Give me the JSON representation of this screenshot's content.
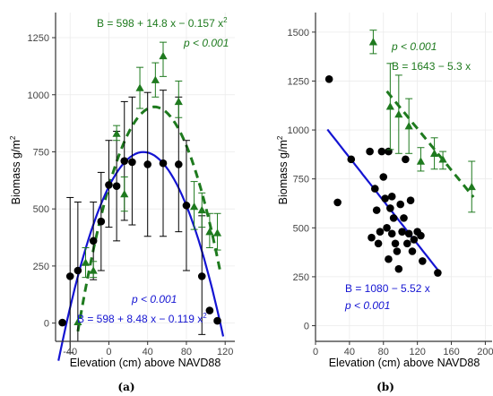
{
  "colors": {
    "green": "#1e7a1e",
    "blue": "#1414d2",
    "black": "#000000",
    "grid": "#ebebeb",
    "axis": "#333333"
  },
  "chart_data": [
    {
      "panel_label": "(a)",
      "type": "scatter",
      "xlabel": "Elevation (cm) above NAVD88",
      "ylabel_main": "Biomass g/m",
      "ylabel_sup": "2",
      "xlim": [
        -55,
        130
      ],
      "ylim": [
        -80,
        1360
      ],
      "xticks": [
        -40,
        0,
        40,
        80,
        120
      ],
      "yticks": [
        0,
        250,
        500,
        750,
        1000,
        1250
      ],
      "grid": true,
      "series": [
        {
          "color_key": "black",
          "marker": "circle",
          "points": [
            {
              "x": -48,
              "y": 2,
              "lo": 2,
              "hi": 2
            },
            {
              "x": -40,
              "y": 205,
              "lo": -130,
              "hi": 550
            },
            {
              "x": -32,
              "y": 230,
              "lo": -80,
              "hi": 530
            },
            {
              "x": -16,
              "y": 360,
              "lo": 190,
              "hi": 530
            },
            {
              "x": -8,
              "y": 445,
              "lo": 230,
              "hi": 660
            },
            {
              "x": 0,
              "y": 605,
              "lo": 420,
              "hi": 800
            },
            {
              "x": 8,
              "y": 600,
              "lo": 360,
              "hi": 840
            },
            {
              "x": 16,
              "y": 710,
              "lo": 450,
              "hi": 970
            },
            {
              "x": 24,
              "y": 705,
              "lo": 430,
              "hi": 990
            },
            {
              "x": 40,
              "y": 695,
              "lo": 380,
              "hi": 1010
            },
            {
              "x": 56,
              "y": 700,
              "lo": 380,
              "hi": 1020
            },
            {
              "x": 72,
              "y": 695,
              "lo": 400,
              "hi": 990
            },
            {
              "x": 80,
              "y": 515,
              "lo": 230,
              "hi": 800
            },
            {
              "x": 96,
              "y": 205,
              "lo": -50,
              "hi": 470
            },
            {
              "x": 104,
              "y": 55,
              "lo": 55,
              "hi": 55
            },
            {
              "x": 112,
              "y": 10,
              "lo": 10,
              "hi": 10
            }
          ]
        },
        {
          "color_key": "green",
          "marker": "triangle",
          "points": [
            {
              "x": -32,
              "y": 5,
              "lo": 5,
              "hi": 5
            },
            {
              "x": -24,
              "y": 265,
              "lo": 200,
              "hi": 330
            },
            {
              "x": -16,
              "y": 230,
              "lo": 200,
              "hi": 270
            },
            {
              "x": 8,
              "y": 830,
              "lo": 800,
              "hi": 865
            },
            {
              "x": 16,
              "y": 565,
              "lo": 490,
              "hi": 640
            },
            {
              "x": 32,
              "y": 1030,
              "lo": 940,
              "hi": 1120
            },
            {
              "x": 48,
              "y": 1065,
              "lo": 990,
              "hi": 1140
            },
            {
              "x": 56,
              "y": 1170,
              "lo": 1080,
              "hi": 1230
            },
            {
              "x": 72,
              "y": 970,
              "lo": 900,
              "hi": 1060
            },
            {
              "x": 88,
              "y": 510,
              "lo": 410,
              "hi": 620
            },
            {
              "x": 96,
              "y": 495,
              "lo": 420,
              "hi": 570
            },
            {
              "x": 104,
              "y": 400,
              "lo": 330,
              "hi": 480
            },
            {
              "x": 112,
              "y": 395,
              "lo": 320,
              "hi": 480
            }
          ]
        }
      ],
      "fits": [
        {
          "color_key": "green",
          "style": "dashed",
          "a": 598,
          "b": 14.8,
          "c": -0.157,
          "xrange": [
            -32,
            115
          ]
        },
        {
          "color_key": "blue",
          "style": "solid",
          "a": 598,
          "b": 8.48,
          "c": -0.119,
          "xrange": [
            -52,
            118
          ]
        }
      ],
      "equations": [
        {
          "color_key": "green",
          "line1": "B = 598 + 14.8 x − 0.157 x",
          "line1_sup": "2",
          "line2": "p < 0.001",
          "position": "top-right"
        },
        {
          "color_key": "blue",
          "line1": "p < 0.001",
          "line2": "B = 598 + 8.48 x − 0.119 x",
          "line2_sup": "2",
          "position": "bottom-right"
        }
      ]
    },
    {
      "panel_label": "(b)",
      "type": "scatter",
      "xlabel": "Elevation (cm) above NAVD88",
      "ylabel_main": "Biomass g/m",
      "ylabel_sup": "2",
      "xlim": [
        0,
        208
      ],
      "ylim": [
        -80,
        1600
      ],
      "xticks": [
        0,
        40,
        80,
        120,
        160,
        200
      ],
      "yticks": [
        0,
        250,
        500,
        750,
        1000,
        1250,
        1500
      ],
      "grid": true,
      "series": [
        {
          "color_key": "black",
          "marker": "circle",
          "points": [
            {
              "x": 16,
              "y": 1260
            },
            {
              "x": 26,
              "y": 630
            },
            {
              "x": 42,
              "y": 850
            },
            {
              "x": 64,
              "y": 890
            },
            {
              "x": 66,
              "y": 450
            },
            {
              "x": 70,
              "y": 700
            },
            {
              "x": 72,
              "y": 590
            },
            {
              "x": 74,
              "y": 420
            },
            {
              "x": 76,
              "y": 480
            },
            {
              "x": 78,
              "y": 890
            },
            {
              "x": 80,
              "y": 760
            },
            {
              "x": 82,
              "y": 650
            },
            {
              "x": 84,
              "y": 500
            },
            {
              "x": 86,
              "y": 890
            },
            {
              "x": 86,
              "y": 340
            },
            {
              "x": 88,
              "y": 600
            },
            {
              "x": 90,
              "y": 660
            },
            {
              "x": 90,
              "y": 470
            },
            {
              "x": 92,
              "y": 550
            },
            {
              "x": 94,
              "y": 420
            },
            {
              "x": 96,
              "y": 380
            },
            {
              "x": 98,
              "y": 290
            },
            {
              "x": 100,
              "y": 620
            },
            {
              "x": 102,
              "y": 480
            },
            {
              "x": 104,
              "y": 550
            },
            {
              "x": 106,
              "y": 850
            },
            {
              "x": 108,
              "y": 420
            },
            {
              "x": 110,
              "y": 470
            },
            {
              "x": 112,
              "y": 640
            },
            {
              "x": 114,
              "y": 380
            },
            {
              "x": 116,
              "y": 440
            },
            {
              "x": 120,
              "y": 480
            },
            {
              "x": 124,
              "y": 460
            },
            {
              "x": 126,
              "y": 330
            },
            {
              "x": 144,
              "y": 270
            }
          ]
        },
        {
          "color_key": "green",
          "marker": "triangle",
          "points": [
            {
              "x": 88,
              "y": 1120,
              "lo": 900,
              "hi": 1340
            },
            {
              "x": 98,
              "y": 1080,
              "lo": 880,
              "hi": 1280
            },
            {
              "x": 110,
              "y": 1020,
              "lo": 880,
              "hi": 1160
            },
            {
              "x": 124,
              "y": 840,
              "lo": 790,
              "hi": 910
            },
            {
              "x": 140,
              "y": 880,
              "lo": 800,
              "hi": 960
            },
            {
              "x": 150,
              "y": 850,
              "lo": 800,
              "hi": 890
            },
            {
              "x": 184,
              "y": 710,
              "lo": 580,
              "hi": 840
            }
          ]
        }
      ],
      "fits": [
        {
          "color_key": "green",
          "style": "dashed",
          "a": 1643,
          "b": -5.3,
          "c": 0,
          "xrange": [
            84,
            186
          ]
        },
        {
          "color_key": "blue",
          "style": "solid",
          "a": 1080,
          "b": -5.52,
          "c": 0,
          "xrange": [
            14,
            146
          ]
        }
      ],
      "legend_marker": {
        "color_key": "green",
        "x": 68,
        "y": 1450,
        "lo": 1390,
        "hi": 1510
      },
      "equations": [
        {
          "color_key": "green",
          "line1": "p < 0.001",
          "line2": "B = 1643 − 5.3 x",
          "position": "top-right"
        },
        {
          "color_key": "blue",
          "line1": "B = 1080 − 5.52 x",
          "line2": "p < 0.001",
          "position": "bottom-left"
        }
      ]
    }
  ]
}
